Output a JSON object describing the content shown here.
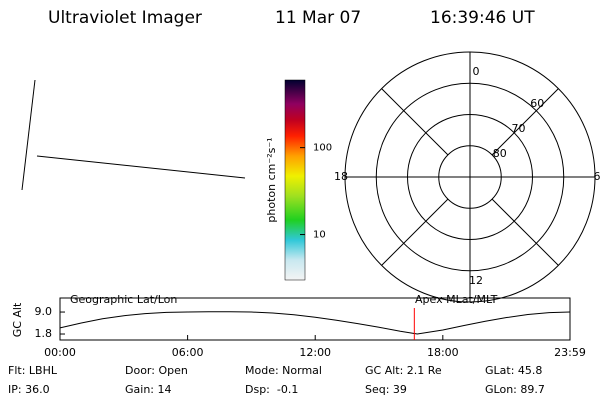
{
  "header": {
    "title": "Ultraviolet Imager",
    "date": "11 Mar 07",
    "time": "16:39:46 UT"
  },
  "colorbar": {
    "label": "photon cm⁻²s⁻¹",
    "clim": [
      3,
      600
    ],
    "ticks": [
      10,
      100
    ],
    "log": true
  },
  "polar": {
    "rlim": [
      90,
      50
    ],
    "rings": [
      80,
      70,
      60
    ],
    "mlt": [
      12,
      6,
      0,
      18
    ]
  },
  "chart_data": {
    "type": "line",
    "ylabel": "GC Alt",
    "left_label": "Geographic Lat/Lon",
    "right_label": "Apex MLat/MLT",
    "x": [
      0,
      1,
      2,
      3,
      4,
      5,
      6,
      7,
      8,
      9,
      10,
      11,
      12,
      13,
      14,
      15,
      16,
      16.8,
      18,
      19,
      20,
      21,
      22,
      23,
      23.98
    ],
    "series": [
      {
        "name": "GC Alt",
        "color": "#000000",
        "values": [
          3.8,
          5.4,
          6.8,
          7.8,
          8.5,
          8.9,
          9.0,
          9.1,
          9.1,
          9.0,
          8.7,
          8.1,
          7.3,
          6.3,
          5.2,
          4.0,
          2.7,
          1.8,
          3.1,
          4.6,
          6.0,
          7.2,
          8.2,
          8.8,
          9.0
        ]
      }
    ],
    "marker_x": 16.66,
    "marker_color": "#ff0000",
    "xlim": [
      0,
      23.98
    ],
    "ylim": [
      -0.16,
      13.6
    ],
    "xticks": [
      {
        "value": 0,
        "label": "00:00"
      },
      {
        "value": 6,
        "label": "06:00"
      },
      {
        "value": 12,
        "label": "12:00"
      },
      {
        "value": 18,
        "label": "18:00"
      },
      {
        "value": 23.98,
        "label": "23:59"
      }
    ],
    "yticks": [
      {
        "value": 1.8,
        "label": "1.8"
      },
      {
        "value": 9,
        "label": "9.0"
      }
    ]
  },
  "footer": {
    "rows": [
      [
        "Flt: LBHL",
        "Door: Open",
        "Mode: Normal",
        "GC Alt: 2.1 Re",
        "GLat: 45.8"
      ],
      [
        "IP: 36.0",
        "Gain: 14",
        "Dsp:  -0.1",
        "Seq: 39",
        "GLon: 89.7"
      ]
    ]
  }
}
